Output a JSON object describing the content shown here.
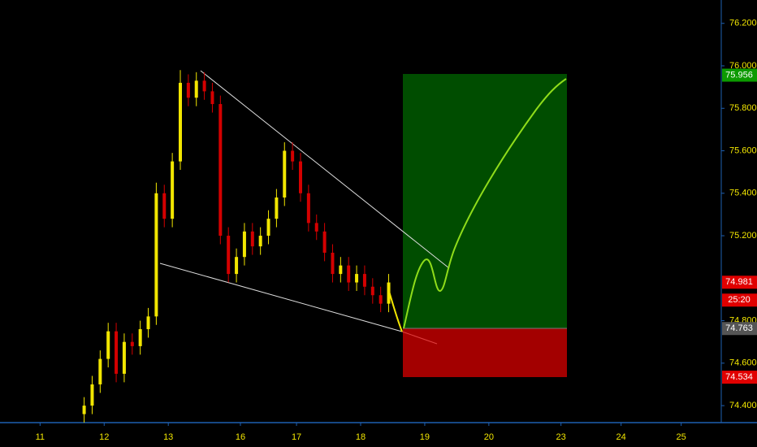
{
  "chart_data": {
    "type": "candlestick",
    "xlim": [
      0,
      180
    ],
    "ylim": [
      74.32,
      76.31
    ],
    "xticks": [
      {
        "value": 10,
        "label": "11"
      },
      {
        "value": 26,
        "label": "12"
      },
      {
        "value": 42,
        "label": "13"
      },
      {
        "value": 60,
        "label": "16"
      },
      {
        "value": 74,
        "label": "17"
      },
      {
        "value": 90,
        "label": "18"
      },
      {
        "value": 106,
        "label": "19"
      },
      {
        "value": 122,
        "label": "20"
      },
      {
        "value": 140,
        "label": "23"
      },
      {
        "value": 155,
        "label": "24"
      },
      {
        "value": 170,
        "label": "25"
      }
    ],
    "yticks": [
      {
        "value": 76.2,
        "label": "76.200"
      },
      {
        "value": 76.0,
        "label": "76.000"
      },
      {
        "value": 75.8,
        "label": "75.800"
      },
      {
        "value": 75.6,
        "label": "75.600"
      },
      {
        "value": 75.4,
        "label": "75.400"
      },
      {
        "value": 75.2,
        "label": "75.200"
      },
      {
        "value": 74.8,
        "label": "74.800"
      },
      {
        "value": 74.6,
        "label": "74.600"
      },
      {
        "value": 74.4,
        "label": "74.400"
      }
    ],
    "up_color": "#f2e600",
    "down_color": "#d40000",
    "candles": {
      "x": [
        21,
        23,
        25,
        27,
        29,
        31,
        33,
        35,
        37,
        39,
        41,
        43,
        45,
        47,
        49,
        51,
        53,
        55,
        57,
        59,
        61,
        63,
        65,
        67,
        69,
        71,
        73,
        75,
        77,
        79,
        81,
        83,
        85,
        87,
        89,
        91,
        93,
        95,
        97
      ],
      "open": [
        74.36,
        74.4,
        74.5,
        74.62,
        74.75,
        74.55,
        74.7,
        74.68,
        74.76,
        74.82,
        75.4,
        75.28,
        75.55,
        75.92,
        75.85,
        75.93,
        75.88,
        75.82,
        75.2,
        75.02,
        75.1,
        75.22,
        75.15,
        75.2,
        75.28,
        75.38,
        75.6,
        75.55,
        75.4,
        75.26,
        75.22,
        75.12,
        75.02,
        75.06,
        74.98,
        75.02,
        74.96,
        74.92,
        74.88
      ],
      "high": [
        74.44,
        74.54,
        74.66,
        74.79,
        74.79,
        74.74,
        74.74,
        74.8,
        74.86,
        75.45,
        75.44,
        75.59,
        75.98,
        75.96,
        75.97,
        75.97,
        75.92,
        75.86,
        75.24,
        75.14,
        75.26,
        75.26,
        75.24,
        75.32,
        75.42,
        75.64,
        75.64,
        75.59,
        75.44,
        75.3,
        75.26,
        75.16,
        75.1,
        75.1,
        75.06,
        75.06,
        75.0,
        74.96,
        75.02
      ],
      "low": [
        74.32,
        74.36,
        74.46,
        74.58,
        74.51,
        74.51,
        74.64,
        74.64,
        74.72,
        74.78,
        75.24,
        75.24,
        75.51,
        75.81,
        75.81,
        75.84,
        75.78,
        75.16,
        74.98,
        74.98,
        75.06,
        75.11,
        75.11,
        75.16,
        75.24,
        75.34,
        75.51,
        75.36,
        75.22,
        75.18,
        75.08,
        74.98,
        74.98,
        74.94,
        74.94,
        74.92,
        74.88,
        74.84,
        74.84
      ],
      "close": [
        74.4,
        74.5,
        74.62,
        74.75,
        74.55,
        74.7,
        74.68,
        74.76,
        74.82,
        75.4,
        75.28,
        75.55,
        75.92,
        75.85,
        75.93,
        75.88,
        75.82,
        75.2,
        75.02,
        75.1,
        75.22,
        75.15,
        75.2,
        75.28,
        75.38,
        75.6,
        75.55,
        75.4,
        75.26,
        75.22,
        75.12,
        75.02,
        75.06,
        74.98,
        75.02,
        74.96,
        74.92,
        74.88,
        74.98
      ]
    },
    "price_tags": [
      {
        "value": 75.956,
        "label": "75.956",
        "color": "#0c9a00"
      },
      {
        "value": 74.981,
        "label": "74.981",
        "color": "#e00000"
      },
      {
        "value": 74.763,
        "label": "74.763",
        "color": "#555555"
      },
      {
        "value": 74.534,
        "label": "74.534",
        "color": "#e00000"
      }
    ],
    "countdown": "25:20"
  }
}
